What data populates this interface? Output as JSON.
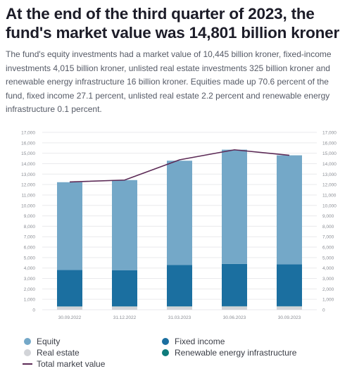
{
  "header": {
    "title": "At the end of the third quarter of 2023, the fund's market value was 14,801 billion kroner",
    "subtitle": "The fund's equity investments had a market value of 10,445 billion kroner, fixed-income investments 4,015 billion kroner, unlisted real estate investments 325 billion kroner and renewable energy infrastructure 16 billion kroner. Equities made up 70.6 percent of the fund, fixed income 27.1 percent, unlisted real estate 2.2 percent and renewable energy infrastructure 0.1 percent."
  },
  "legend": {
    "equity": "Equity",
    "fixed_income": "Fixed income",
    "real_estate": "Real estate",
    "renewable": "Renewable energy infrastructure",
    "total": "Total market value"
  },
  "colors": {
    "equity": "#74a8c8",
    "fixed_income": "#1b6fa0",
    "real_estate": "#d2d4d8",
    "renewable": "#0e7b7b",
    "total": "#5c2a56",
    "grid": "#e9eaec",
    "tick": "#8a8d94"
  },
  "chart_data": {
    "type": "bar",
    "stacked": true,
    "categories": [
      "30.09.2022",
      "31.12.2022",
      "31.03.2023",
      "30.06.2023",
      "30.09.2023"
    ],
    "series": [
      {
        "name": "Real estate",
        "key": "real_estate",
        "values": [
          310,
          315,
          320,
          325,
          325
        ]
      },
      {
        "name": "Renewable energy infrastructure",
        "key": "renewable",
        "values": [
          14,
          14,
          15,
          16,
          16
        ]
      },
      {
        "name": "Fixed income",
        "key": "fixed_income",
        "values": [
          3500,
          3450,
          3950,
          4050,
          4015
        ]
      },
      {
        "name": "Equity",
        "key": "equity",
        "values": [
          8400,
          8650,
          10000,
          10950,
          10445
        ]
      }
    ],
    "line": {
      "name": "Total market value",
      "values": [
        12250,
        12430,
        14370,
        15330,
        14801
      ]
    },
    "yticks": [
      "0",
      "1,000",
      "2,000",
      "3,000",
      "4,000",
      "5,000",
      "6,000",
      "7,000",
      "8,000",
      "9,000",
      "10,000",
      "11,000",
      "12,000",
      "13,000",
      "14,000",
      "15,000",
      "16,000",
      "17,000"
    ],
    "ylim": [
      0,
      17000
    ],
    "grid": true,
    "legend_position": "bottom"
  }
}
